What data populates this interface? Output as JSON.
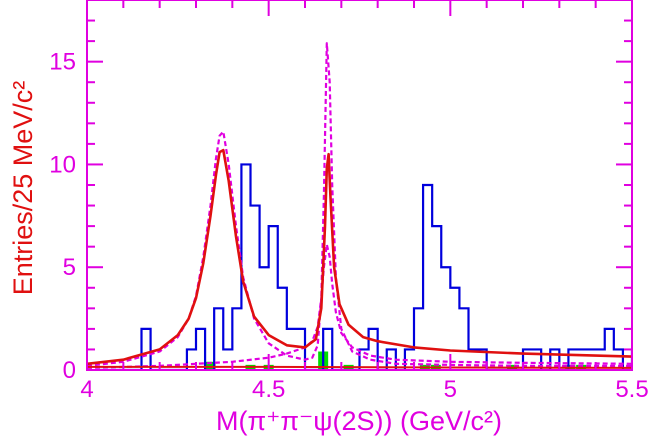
{
  "chart_data": {
    "type": "histogram",
    "xlabel": "M(π⁺π⁻ψ(2S)) (GeV/c²)",
    "ylabel": "Entries/25 MeV/c²",
    "xlim": [
      4.0,
      5.5
    ],
    "ylim": [
      0,
      18
    ],
    "x_ticks": [
      "4",
      "4.5",
      "5",
      "5.5"
    ],
    "y_ticks": [
      "0",
      "5",
      "10",
      "15"
    ],
    "grid": false,
    "colors": {
      "frame": "#e000e0",
      "data": "#0000dd",
      "total_fit": "#e01010",
      "components": "#e000e0",
      "background": "#00dd00"
    },
    "series": [
      {
        "style": "step-histogram",
        "bin_width": 0.025,
        "x_start": 4.025,
        "values": [
          0,
          0,
          0,
          0,
          0,
          2,
          0,
          0,
          0,
          0,
          1,
          2,
          0,
          3,
          1,
          3,
          10,
          8,
          5,
          7,
          4,
          2,
          2,
          0,
          0,
          2,
          0,
          0,
          0,
          1,
          2,
          0,
          1,
          0,
          1,
          3,
          9,
          7,
          5,
          4,
          3,
          1,
          1,
          0,
          0,
          0,
          0,
          1,
          1,
          0,
          1,
          0,
          1,
          1,
          1,
          1,
          2,
          1,
          0,
          1,
          1,
          0,
          1,
          0,
          1,
          0,
          2,
          1,
          1,
          0,
          1,
          1,
          1,
          0,
          1,
          0,
          1,
          1,
          1,
          0,
          0,
          0,
          2,
          1,
          2,
          1,
          1,
          1,
          1,
          0,
          2,
          0,
          0
        ]
      },
      {
        "style": "solid-curve",
        "x": [
          4.0,
          4.1,
          4.2,
          4.25,
          4.28,
          4.3,
          4.32,
          4.34,
          4.355,
          4.365,
          4.375,
          4.39,
          4.41,
          4.43,
          4.46,
          4.5,
          4.55,
          4.6,
          4.63,
          4.645,
          4.655,
          4.66,
          4.665,
          4.67,
          4.68,
          4.695,
          4.72,
          4.76,
          4.8,
          4.9,
          5.0,
          5.2,
          5.4,
          5.5
        ],
        "y": [
          0.3,
          0.5,
          1.0,
          1.7,
          2.5,
          3.5,
          5.2,
          7.5,
          9.5,
          10.6,
          10.7,
          9.2,
          6.5,
          4.3,
          2.6,
          1.7,
          1.2,
          1.1,
          1.5,
          3.0,
          7.0,
          9.8,
          10.5,
          8.5,
          5.0,
          3.2,
          2.2,
          1.6,
          1.4,
          1.1,
          0.95,
          0.8,
          0.7,
          0.65
        ]
      },
      {
        "style": "dashed-curve",
        "x": [
          4.0,
          4.1,
          4.2,
          4.25,
          4.28,
          4.3,
          4.32,
          4.34,
          4.355,
          4.365,
          4.375,
          4.39,
          4.41,
          4.43,
          4.46,
          4.5,
          4.55,
          4.6,
          4.62,
          4.635,
          4.645,
          4.652,
          4.66,
          4.668,
          4.675,
          4.685,
          4.7,
          4.73,
          4.78,
          4.85,
          5.0,
          5.2,
          5.5
        ],
        "y": [
          0.2,
          0.4,
          0.9,
          1.6,
          2.5,
          3.6,
          5.5,
          8.0,
          10.3,
          11.4,
          11.6,
          10.0,
          7.0,
          4.5,
          2.5,
          1.3,
          0.7,
          0.5,
          0.6,
          1.2,
          3.5,
          8.5,
          15.9,
          14.0,
          9.0,
          4.5,
          2.0,
          0.9,
          0.5,
          0.3,
          0.25,
          0.2,
          0.2
        ]
      },
      {
        "style": "dashed-curve",
        "x": [
          4.0,
          4.2,
          4.3,
          4.4,
          4.5,
          4.55,
          4.6,
          4.62,
          4.635,
          4.645,
          4.652,
          4.66,
          4.668,
          4.675,
          4.685,
          4.7,
          4.73,
          4.78,
          4.85,
          5.0,
          5.2,
          5.5
        ],
        "y": [
          0.1,
          0.2,
          0.3,
          0.4,
          0.6,
          0.8,
          1.1,
          1.4,
          2.1,
          3.5,
          5.0,
          6.1,
          5.5,
          4.2,
          2.8,
          1.8,
          1.1,
          0.7,
          0.5,
          0.4,
          0.35,
          0.3
        ]
      },
      {
        "style": "background-boxes",
        "x": [
          4.34,
          4.45,
          4.5,
          4.65,
          4.72,
          4.93,
          4.96,
          5.17,
          5.33,
          5.36
        ],
        "y": [
          0.4,
          0.25,
          0.25,
          0.9,
          0.25,
          0.25,
          0.25,
          0.25,
          0.25,
          0.25
        ]
      },
      {
        "style": "background-line",
        "x": [
          4.0,
          4.5,
          5.0,
          5.5
        ],
        "y": [
          0.15,
          0.15,
          0.12,
          0.1
        ]
      }
    ]
  }
}
